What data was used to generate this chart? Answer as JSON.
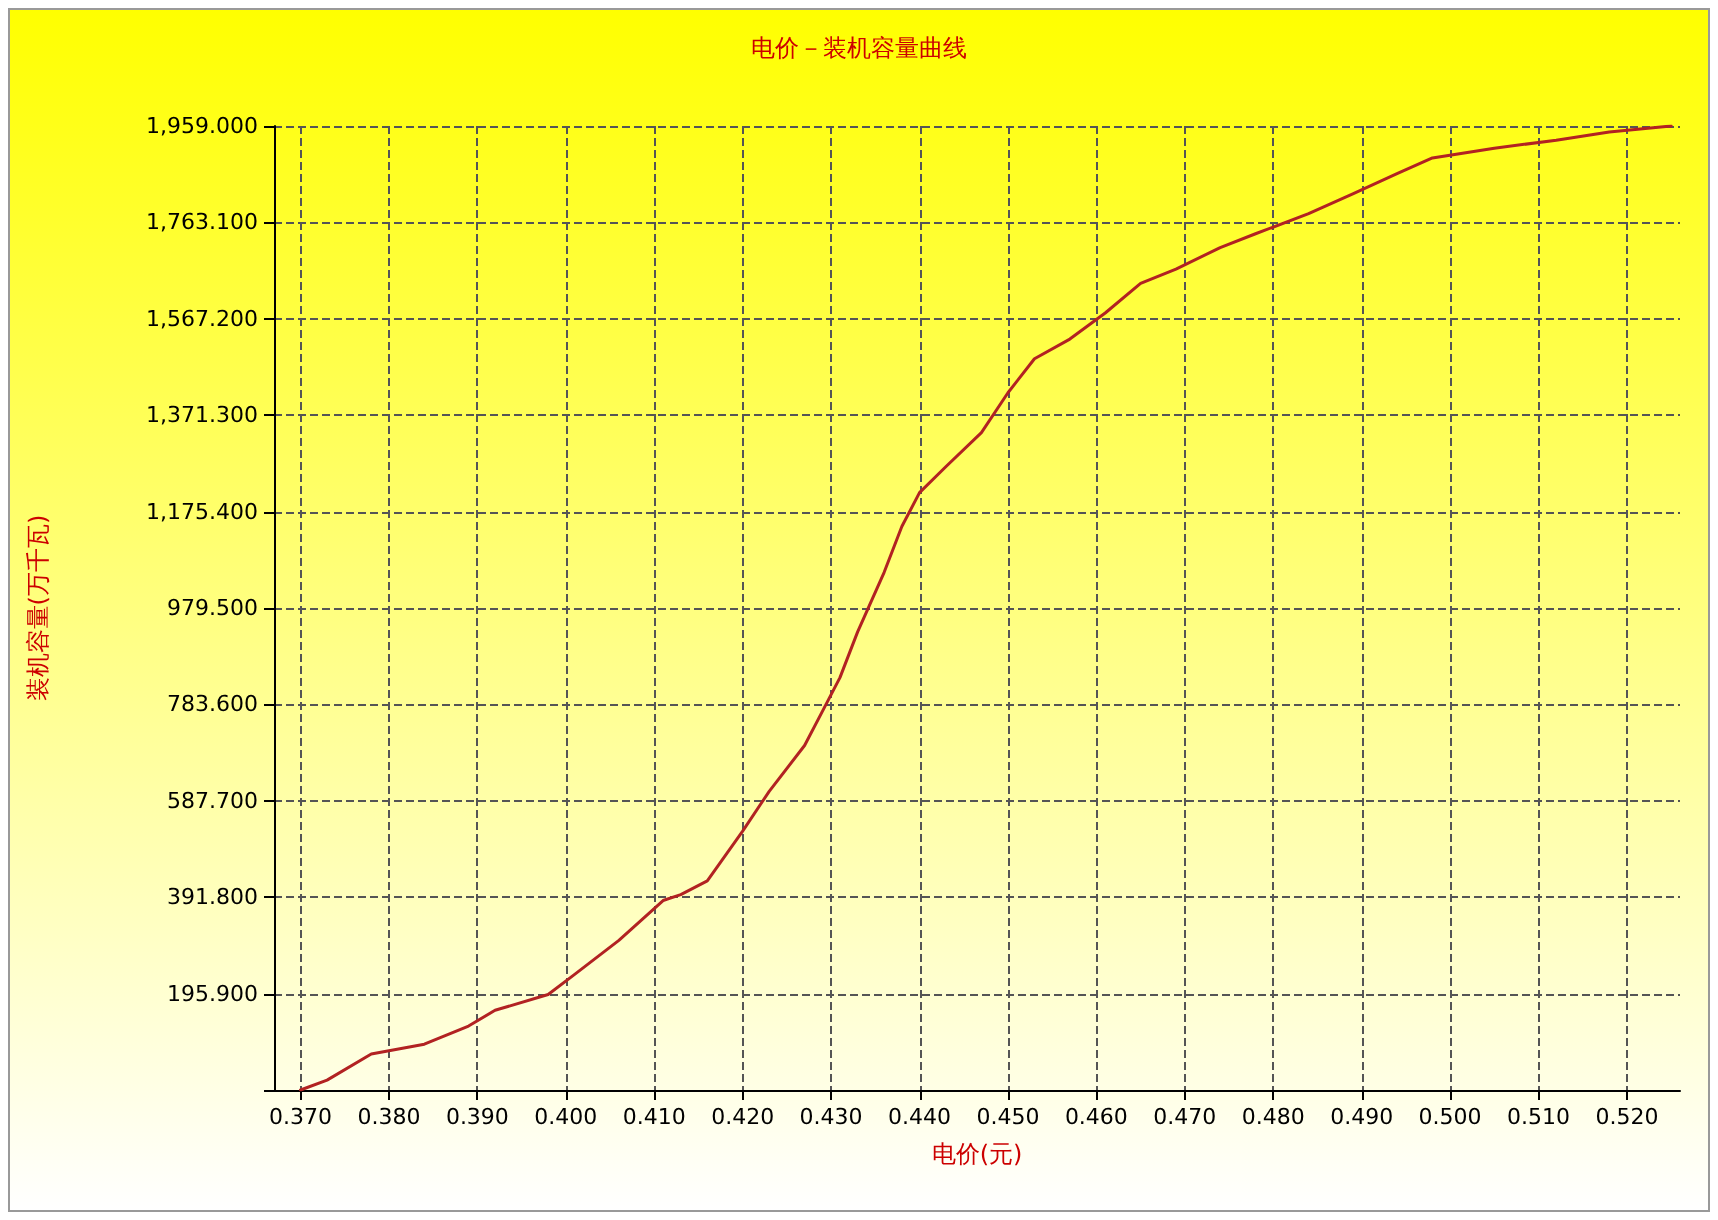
{
  "chart_data": {
    "type": "line",
    "title": "电价－装机容量曲线",
    "xlabel": "电价(元)",
    "ylabel": "装机容量(万千瓦)",
    "xlim": [
      0.367,
      0.526
    ],
    "xticks": [
      {
        "value": 0.37,
        "label": "0.370"
      },
      {
        "value": 0.38,
        "label": "0.380"
      },
      {
        "value": 0.39,
        "label": "0.390"
      },
      {
        "value": 0.4,
        "label": "0.400"
      },
      {
        "value": 0.41,
        "label": "0.410"
      },
      {
        "value": 0.42,
        "label": "0.420"
      },
      {
        "value": 0.43,
        "label": "0.430"
      },
      {
        "value": 0.44,
        "label": "0.440"
      },
      {
        "value": 0.45,
        "label": "0.450"
      },
      {
        "value": 0.46,
        "label": "0.460"
      },
      {
        "value": 0.47,
        "label": "0.470"
      },
      {
        "value": 0.48,
        "label": "0.480"
      },
      {
        "value": 0.49,
        "label": "0.490"
      },
      {
        "value": 0.5,
        "label": "0.500"
      },
      {
        "value": 0.51,
        "label": "0.510"
      },
      {
        "value": 0.52,
        "label": "0.520"
      }
    ],
    "ylim": [
      0,
      1959
    ],
    "yticks": [
      {
        "value": 0,
        "label": null
      },
      {
        "value": 195.9,
        "label": "195.900"
      },
      {
        "value": 391.8,
        "label": "391.800"
      },
      {
        "value": 587.7,
        "label": "587.700"
      },
      {
        "value": 783.6,
        "label": "783.600"
      },
      {
        "value": 979.5,
        "label": "979.500"
      },
      {
        "value": 1175.4,
        "label": "1,175.400"
      },
      {
        "value": 1371.3,
        "label": "1,371.300"
      },
      {
        "value": 1567.2,
        "label": "1,567.200"
      },
      {
        "value": 1763.1,
        "label": "1,763.100"
      },
      {
        "value": 1959,
        "label": "1,959.000"
      }
    ],
    "grid": true,
    "marker": "none",
    "line_style": "solid",
    "series": [
      {
        "color": "#b22222",
        "x": [
          0.37,
          0.373,
          0.378,
          0.384,
          0.389,
          0.392,
          0.398,
          0.401,
          0.406,
          0.411,
          0.413,
          0.416,
          0.42,
          0.423,
          0.427,
          0.429,
          0.431,
          0.433,
          0.436,
          0.438,
          0.44,
          0.443,
          0.447,
          0.45,
          0.453,
          0.457,
          0.461,
          0.465,
          0.469,
          0.474,
          0.478,
          0.484,
          0.489,
          0.494,
          0.498,
          0.505,
          0.512,
          0.518,
          0.525
        ],
        "values": [
          0,
          20,
          73,
          93,
          130,
          162,
          194,
          235,
          304,
          385,
          397,
          425,
          526,
          607,
          700,
          769,
          838,
          931,
          1052,
          1145,
          1214,
          1267,
          1336,
          1417,
          1486,
          1526,
          1579,
          1639,
          1668,
          1712,
          1740,
          1781,
          1821,
          1862,
          1894,
          1914,
          1930,
          1947,
          1959
        ]
      }
    ]
  }
}
